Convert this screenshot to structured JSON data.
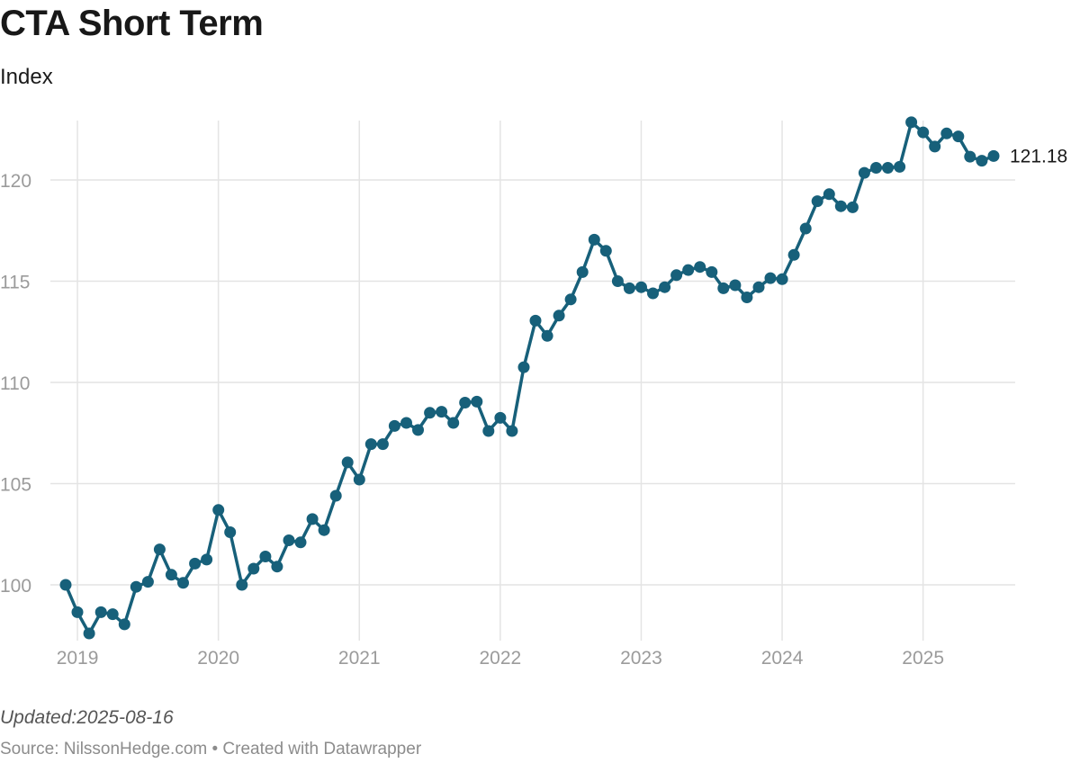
{
  "header": {
    "title": "CTA Short Term",
    "subtitle": "Index"
  },
  "footer": {
    "updated": "Updated:2025-08-16",
    "source": "Source: NilssonHedge.com • Created with Datawrapper"
  },
  "colors": {
    "series": "#17607a",
    "grid": "#e4e4e4",
    "tick": "#9b9b9b"
  },
  "chart_data": {
    "type": "line",
    "title": "CTA Short Term",
    "subtitle": "Index",
    "xlabel": "",
    "ylabel": "",
    "x_ticks": [
      "2019",
      "2020",
      "2021",
      "2022",
      "2023",
      "2024",
      "2025"
    ],
    "y_ticks": [
      100,
      105,
      110,
      115,
      120
    ],
    "ylim": [
      97.8,
      123.5
    ],
    "xlim": [
      "2018-12",
      "2025-07"
    ],
    "grid": true,
    "markers": true,
    "end_label": "121.18",
    "series": [
      {
        "x": [
          "2018-12",
          "2019-01",
          "2019-02",
          "2019-03",
          "2019-04",
          "2019-05",
          "2019-06",
          "2019-07",
          "2019-08",
          "2019-09",
          "2019-10",
          "2019-11",
          "2019-12",
          "2020-01",
          "2020-02",
          "2020-03",
          "2020-04",
          "2020-05",
          "2020-06",
          "2020-07",
          "2020-08",
          "2020-09",
          "2020-10",
          "2020-11",
          "2020-12",
          "2021-01",
          "2021-02",
          "2021-03",
          "2021-04",
          "2021-05",
          "2021-06",
          "2021-07",
          "2021-08",
          "2021-09",
          "2021-10",
          "2021-11",
          "2021-12",
          "2022-01",
          "2022-02",
          "2022-03",
          "2022-04",
          "2022-05",
          "2022-06",
          "2022-07",
          "2022-08",
          "2022-09",
          "2022-10",
          "2022-11",
          "2022-12",
          "2023-01",
          "2023-02",
          "2023-03",
          "2023-04",
          "2023-05",
          "2023-06",
          "2023-07",
          "2023-08",
          "2023-09",
          "2023-10",
          "2023-11",
          "2023-12",
          "2024-01",
          "2024-02",
          "2024-03",
          "2024-04",
          "2024-05",
          "2024-06",
          "2024-07",
          "2024-08",
          "2024-09",
          "2024-10",
          "2024-11",
          "2024-12",
          "2025-01",
          "2025-02",
          "2025-03",
          "2025-04",
          "2025-05",
          "2025-06",
          "2025-07"
        ],
        "values": [
          100.0,
          98.65,
          97.6,
          98.65,
          98.55,
          98.05,
          99.9,
          100.15,
          101.75,
          100.5,
          100.1,
          101.05,
          101.25,
          103.7,
          102.6,
          100.0,
          100.8,
          101.4,
          100.9,
          102.2,
          102.1,
          103.25,
          102.7,
          104.4,
          106.05,
          105.2,
          106.95,
          106.95,
          107.85,
          108.0,
          107.65,
          108.5,
          108.55,
          108.0,
          109.0,
          109.05,
          107.6,
          108.25,
          107.6,
          110.75,
          113.05,
          112.3,
          113.3,
          114.1,
          115.45,
          117.05,
          116.5,
          115.0,
          114.65,
          114.7,
          114.4,
          114.7,
          115.3,
          115.55,
          115.7,
          115.45,
          114.65,
          114.8,
          114.2,
          114.7,
          115.15,
          115.1,
          116.3,
          117.6,
          118.95,
          119.3,
          118.7,
          118.65,
          120.35,
          120.6,
          120.6,
          120.65,
          122.85,
          122.35,
          121.65,
          122.3,
          122.15,
          121.15,
          120.95,
          121.18
        ]
      }
    ]
  }
}
